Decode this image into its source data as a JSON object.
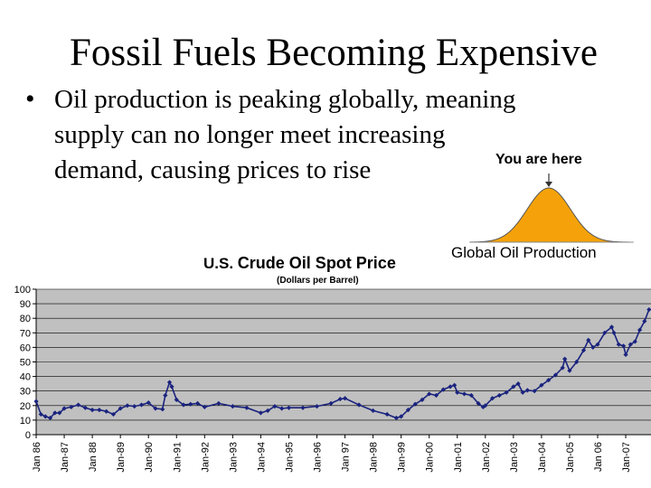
{
  "slide": {
    "title": "Fossil Fuels Becoming Expensive",
    "bullet_lines": [
      "Oil production is peaking globally, meaning",
      "supply can no longer meet increasing",
      "demand, causing prices to rise"
    ]
  },
  "inset": {
    "annotation": "You are here",
    "caption": "Global Oil Production",
    "fill_color": "#f5a20a"
  },
  "chart_data": {
    "type": "line",
    "title_prefix": "U.S.",
    "title_main": "Crude Oil Spot Price",
    "subtitle": "(Dollars per Barrel)",
    "xlabel": "",
    "ylabel": "",
    "ylim": [
      0,
      100
    ],
    "yticks": [
      0,
      10,
      20,
      30,
      40,
      50,
      60,
      70,
      80,
      90,
      100
    ],
    "xlim": [
      1986,
      2007.9
    ],
    "grid": true,
    "grid_axis": "y",
    "plot_background": "#c0c0c0",
    "line_color": "#1a237e",
    "marker": "diamond",
    "categories": [
      "Jan 86",
      "Jan-87",
      "Jan 88",
      "Jan-89",
      "Jan-90",
      "Jan-91",
      "Jan-92",
      "Jan-93",
      "Jan-94",
      "Jan-95",
      "Jan-96",
      "Jan 97",
      "Jan-98",
      "Jan-99",
      "Jan-00",
      "Jan-01",
      "Jan-02",
      "Jan-03",
      "Jan-04",
      "Jan-05",
      "Jan 06",
      "Jan-07"
    ],
    "series": [
      {
        "x": [
          1986.0,
          1986.17,
          1986.33,
          1986.5,
          1986.67,
          1986.83,
          1987.0,
          1987.25,
          1987.5,
          1987.75,
          1988.0,
          1988.25,
          1988.5,
          1988.75,
          1989.0,
          1989.25,
          1989.5,
          1989.75,
          1990.0,
          1990.25,
          1990.5,
          1990.6,
          1990.75,
          1990.83,
          1991.0,
          1991.25,
          1991.5,
          1991.75,
          1992.0,
          1992.5,
          1993.0,
          1993.5,
          1994.0,
          1994.25,
          1994.5,
          1994.75,
          1995.0,
          1995.5,
          1996.0,
          1996.5,
          1996.83,
          1997.0,
          1997.5,
          1998.0,
          1998.5,
          1998.83,
          1999.0,
          1999.25,
          1999.5,
          1999.75,
          2000.0,
          2000.25,
          2000.5,
          2000.75,
          2000.9,
          2001.0,
          2001.25,
          2001.5,
          2001.75,
          2001.92,
          2002.0,
          2002.25,
          2002.5,
          2002.75,
          2003.0,
          2003.17,
          2003.33,
          2003.5,
          2003.75,
          2004.0,
          2004.25,
          2004.5,
          2004.75,
          2004.83,
          2005.0,
          2005.25,
          2005.5,
          2005.67,
          2005.83,
          2006.0,
          2006.25,
          2006.5,
          2006.58,
          2006.75,
          2006.92,
          2007.0,
          2007.17,
          2007.33,
          2007.5,
          2007.67,
          2007.83
        ],
        "y": [
          22.9,
          14.0,
          12.5,
          11.5,
          15.0,
          15.0,
          18.0,
          19.0,
          20.5,
          18.5,
          17.0,
          17.0,
          16.0,
          14.0,
          18.0,
          20.0,
          19.5,
          20.5,
          22.0,
          18.0,
          17.5,
          27.0,
          36.0,
          33.0,
          24.0,
          20.5,
          21.0,
          21.5,
          19.0,
          21.5,
          19.5,
          18.5,
          15.0,
          16.5,
          19.5,
          18.0,
          18.5,
          18.5,
          19.5,
          21.5,
          24.5,
          25.0,
          20.5,
          16.5,
          14.0,
          11.5,
          12.5,
          17.0,
          21.0,
          24.0,
          28.0,
          27.0,
          31.0,
          33.0,
          34.0,
          29.0,
          28.0,
          27.0,
          21.5,
          19.0,
          20.0,
          25.0,
          27.0,
          29.0,
          33.0,
          35.0,
          29.0,
          30.5,
          30.0,
          34.0,
          37.5,
          41.0,
          46.0,
          52.0,
          44.0,
          50.0,
          58.0,
          65.0,
          60.0,
          62.0,
          70.0,
          74.0,
          70.0,
          62.0,
          61.0,
          55.0,
          62.0,
          64.0,
          72.0,
          78.0,
          86.0
        ]
      }
    ]
  }
}
